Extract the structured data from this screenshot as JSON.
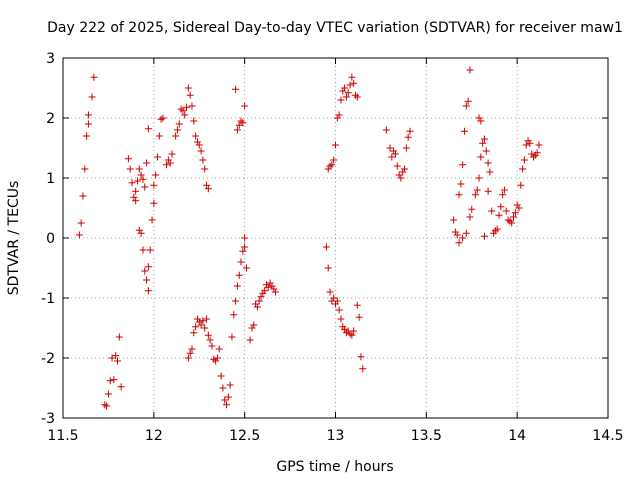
{
  "chart_data": {
    "type": "scatter",
    "title": "Day 222 of 2025, Sidereal Day-to-day VTEC variation (SDTVAR) for receiver maw1",
    "xlabel": "GPS time / hours",
    "ylabel": "SDTVAR / TECUs",
    "xlim": [
      11.5,
      14.5
    ],
    "ylim": [
      -3,
      3
    ],
    "xticks": [
      "11.5",
      "12",
      "12.5",
      "13",
      "13.5",
      "14",
      "14.5"
    ],
    "yticks": [
      "-3",
      "-2",
      "-1",
      "0",
      "1",
      "2",
      "3"
    ],
    "grid": true,
    "marker": "+",
    "color": "#cc0000",
    "points": [
      [
        11.59,
        0.05
      ],
      [
        11.6,
        0.25
      ],
      [
        11.61,
        0.7
      ],
      [
        11.62,
        1.15
      ],
      [
        11.63,
        1.7
      ],
      [
        11.64,
        1.9
      ],
      [
        11.64,
        2.05
      ],
      [
        11.66,
        2.35
      ],
      [
        11.67,
        2.68
      ],
      [
        11.73,
        -2.78
      ],
      [
        11.74,
        -2.8
      ],
      [
        11.75,
        -2.6
      ],
      [
        11.76,
        -2.38
      ],
      [
        11.77,
        -2.0
      ],
      [
        11.78,
        -2.36
      ],
      [
        11.79,
        -1.96
      ],
      [
        11.8,
        -2.05
      ],
      [
        11.81,
        -1.65
      ],
      [
        11.82,
        -2.48
      ],
      [
        11.86,
        1.32
      ],
      [
        11.87,
        1.15
      ],
      [
        11.88,
        0.92
      ],
      [
        11.89,
        0.68
      ],
      [
        11.9,
        0.62
      ],
      [
        11.9,
        0.78
      ],
      [
        11.91,
        0.95
      ],
      [
        11.92,
        1.15
      ],
      [
        11.93,
        1.05
      ],
      [
        11.94,
        0.98
      ],
      [
        11.95,
        0.85
      ],
      [
        11.96,
        1.25
      ],
      [
        11.92,
        0.13
      ],
      [
        11.93,
        0.08
      ],
      [
        11.94,
        -0.2
      ],
      [
        11.95,
        -0.55
      ],
      [
        11.96,
        -0.7
      ],
      [
        11.97,
        -0.88
      ],
      [
        11.97,
        -0.48
      ],
      [
        11.98,
        -0.2
      ],
      [
        11.97,
        1.82
      ],
      [
        11.99,
        0.3
      ],
      [
        12.0,
        0.58
      ],
      [
        12.0,
        0.88
      ],
      [
        12.01,
        1.05
      ],
      [
        12.02,
        1.35
      ],
      [
        12.03,
        1.7
      ],
      [
        12.04,
        1.98
      ],
      [
        12.05,
        2.0
      ],
      [
        12.07,
        1.22
      ],
      [
        12.08,
        1.3
      ],
      [
        12.09,
        1.25
      ],
      [
        12.1,
        1.4
      ],
      [
        12.12,
        1.7
      ],
      [
        12.13,
        1.8
      ],
      [
        12.14,
        1.9
      ],
      [
        12.15,
        2.15
      ],
      [
        12.16,
        2.12
      ],
      [
        12.17,
        2.05
      ],
      [
        12.18,
        2.18
      ],
      [
        12.19,
        2.5
      ],
      [
        12.2,
        2.38
      ],
      [
        12.21,
        2.2
      ],
      [
        12.22,
        1.95
      ],
      [
        12.23,
        1.7
      ],
      [
        12.24,
        1.6
      ],
      [
        12.25,
        1.55
      ],
      [
        12.26,
        1.45
      ],
      [
        12.27,
        1.3
      ],
      [
        12.28,
        1.15
      ],
      [
        12.29,
        0.88
      ],
      [
        12.3,
        0.82
      ],
      [
        12.19,
        -2.0
      ],
      [
        12.2,
        -1.92
      ],
      [
        12.21,
        -1.85
      ],
      [
        12.22,
        -1.58
      ],
      [
        12.23,
        -1.48
      ],
      [
        12.24,
        -1.35
      ],
      [
        12.25,
        -1.4
      ],
      [
        12.26,
        -1.45
      ],
      [
        12.27,
        -1.38
      ],
      [
        12.28,
        -1.5
      ],
      [
        12.29,
        -1.35
      ],
      [
        12.3,
        -1.62
      ],
      [
        12.31,
        -1.7
      ],
      [
        12.32,
        -1.8
      ],
      [
        12.33,
        -2.02
      ],
      [
        12.34,
        -2.05
      ],
      [
        12.35,
        -2.0
      ],
      [
        12.36,
        -1.85
      ],
      [
        12.37,
        -2.3
      ],
      [
        12.38,
        -2.5
      ],
      [
        12.39,
        -2.7
      ],
      [
        12.4,
        -2.78
      ],
      [
        12.41,
        -2.65
      ],
      [
        12.42,
        -2.45
      ],
      [
        12.43,
        -1.65
      ],
      [
        12.44,
        -1.28
      ],
      [
        12.45,
        -1.05
      ],
      [
        12.46,
        -0.8
      ],
      [
        12.47,
        -0.62
      ],
      [
        12.48,
        -0.4
      ],
      [
        12.49,
        -0.22
      ],
      [
        12.5,
        -0.15
      ],
      [
        12.51,
        -0.5
      ],
      [
        12.5,
        0.0
      ],
      [
        12.45,
        2.48
      ],
      [
        12.46,
        1.8
      ],
      [
        12.47,
        1.88
      ],
      [
        12.48,
        1.95
      ],
      [
        12.49,
        1.92
      ],
      [
        12.5,
        2.2
      ],
      [
        12.53,
        -1.7
      ],
      [
        12.54,
        -1.5
      ],
      [
        12.55,
        -1.45
      ],
      [
        12.56,
        -1.1
      ],
      [
        12.57,
        -1.15
      ],
      [
        12.58,
        -1.05
      ],
      [
        12.59,
        -0.98
      ],
      [
        12.6,
        -0.92
      ],
      [
        12.61,
        -0.88
      ],
      [
        12.62,
        -0.78
      ],
      [
        12.63,
        -0.82
      ],
      [
        12.64,
        -0.75
      ],
      [
        12.65,
        -0.8
      ],
      [
        12.66,
        -0.85
      ],
      [
        12.67,
        -0.9
      ],
      [
        12.95,
        -0.15
      ],
      [
        12.96,
        -0.5
      ],
      [
        12.96,
        1.15
      ],
      [
        12.97,
        1.2
      ],
      [
        12.98,
        1.22
      ],
      [
        12.99,
        1.3
      ],
      [
        12.97,
        -0.9
      ],
      [
        12.98,
        -1.05
      ],
      [
        12.99,
        -1.0
      ],
      [
        13.0,
        -1.1
      ],
      [
        13.01,
        -1.05
      ],
      [
        13.02,
        -1.2
      ],
      [
        13.03,
        -1.35
      ],
      [
        13.04,
        -1.48
      ],
      [
        13.05,
        -1.52
      ],
      [
        13.06,
        -1.58
      ],
      [
        13.07,
        -1.55
      ],
      [
        13.08,
        -1.6
      ],
      [
        13.09,
        -1.62
      ],
      [
        13.1,
        -1.55
      ],
      [
        13.0,
        1.55
      ],
      [
        13.01,
        2.0
      ],
      [
        13.02,
        2.05
      ],
      [
        13.03,
        2.3
      ],
      [
        13.04,
        2.45
      ],
      [
        13.05,
        2.5
      ],
      [
        13.06,
        2.35
      ],
      [
        13.07,
        2.42
      ],
      [
        13.08,
        2.55
      ],
      [
        13.09,
        2.68
      ],
      [
        13.1,
        2.58
      ],
      [
        13.11,
        2.38
      ],
      [
        13.12,
        2.35
      ],
      [
        13.12,
        -1.12
      ],
      [
        13.13,
        -1.32
      ],
      [
        13.14,
        -1.98
      ],
      [
        13.15,
        -2.18
      ],
      [
        13.28,
        1.8
      ],
      [
        13.3,
        1.5
      ],
      [
        13.31,
        1.35
      ],
      [
        13.32,
        1.45
      ],
      [
        13.33,
        1.4
      ],
      [
        13.34,
        1.2
      ],
      [
        13.35,
        1.05
      ],
      [
        13.36,
        1.0
      ],
      [
        13.37,
        1.1
      ],
      [
        13.38,
        1.15
      ],
      [
        13.39,
        1.5
      ],
      [
        13.4,
        1.68
      ],
      [
        13.41,
        1.78
      ],
      [
        13.65,
        0.3
      ],
      [
        13.66,
        0.1
      ],
      [
        13.67,
        0.05
      ],
      [
        13.68,
        0.72
      ],
      [
        13.69,
        0.9
      ],
      [
        13.7,
        1.22
      ],
      [
        13.71,
        1.78
      ],
      [
        13.72,
        2.2
      ],
      [
        13.73,
        2.28
      ],
      [
        13.74,
        2.8
      ],
      [
        13.68,
        -0.08
      ],
      [
        13.7,
        0.0
      ],
      [
        13.72,
        0.08
      ],
      [
        13.74,
        0.35
      ],
      [
        13.75,
        0.48
      ],
      [
        13.77,
        0.72
      ],
      [
        13.78,
        0.8
      ],
      [
        13.79,
        1.0
      ],
      [
        13.8,
        1.35
      ],
      [
        13.81,
        1.58
      ],
      [
        13.82,
        1.65
      ],
      [
        13.83,
        1.45
      ],
      [
        13.84,
        1.25
      ],
      [
        13.85,
        1.1
      ],
      [
        13.79,
        2.0
      ],
      [
        13.8,
        1.95
      ],
      [
        13.82,
        0.03
      ],
      [
        13.84,
        0.78
      ],
      [
        13.86,
        0.45
      ],
      [
        13.87,
        0.08
      ],
      [
        13.88,
        0.12
      ],
      [
        13.89,
        0.15
      ],
      [
        13.9,
        0.38
      ],
      [
        13.91,
        0.52
      ],
      [
        13.92,
        0.72
      ],
      [
        13.93,
        0.8
      ],
      [
        13.94,
        0.45
      ],
      [
        13.95,
        0.3
      ],
      [
        13.96,
        0.28
      ],
      [
        13.97,
        0.25
      ],
      [
        13.98,
        0.35
      ],
      [
        13.99,
        0.42
      ],
      [
        14.0,
        0.55
      ],
      [
        14.01,
        0.5
      ],
      [
        14.02,
        0.88
      ],
      [
        14.03,
        1.15
      ],
      [
        14.04,
        1.3
      ],
      [
        14.05,
        1.55
      ],
      [
        14.06,
        1.62
      ],
      [
        14.07,
        1.58
      ],
      [
        14.08,
        1.4
      ],
      [
        14.09,
        1.35
      ],
      [
        14.1,
        1.38
      ],
      [
        14.11,
        1.42
      ],
      [
        14.12,
        1.55
      ]
    ]
  }
}
